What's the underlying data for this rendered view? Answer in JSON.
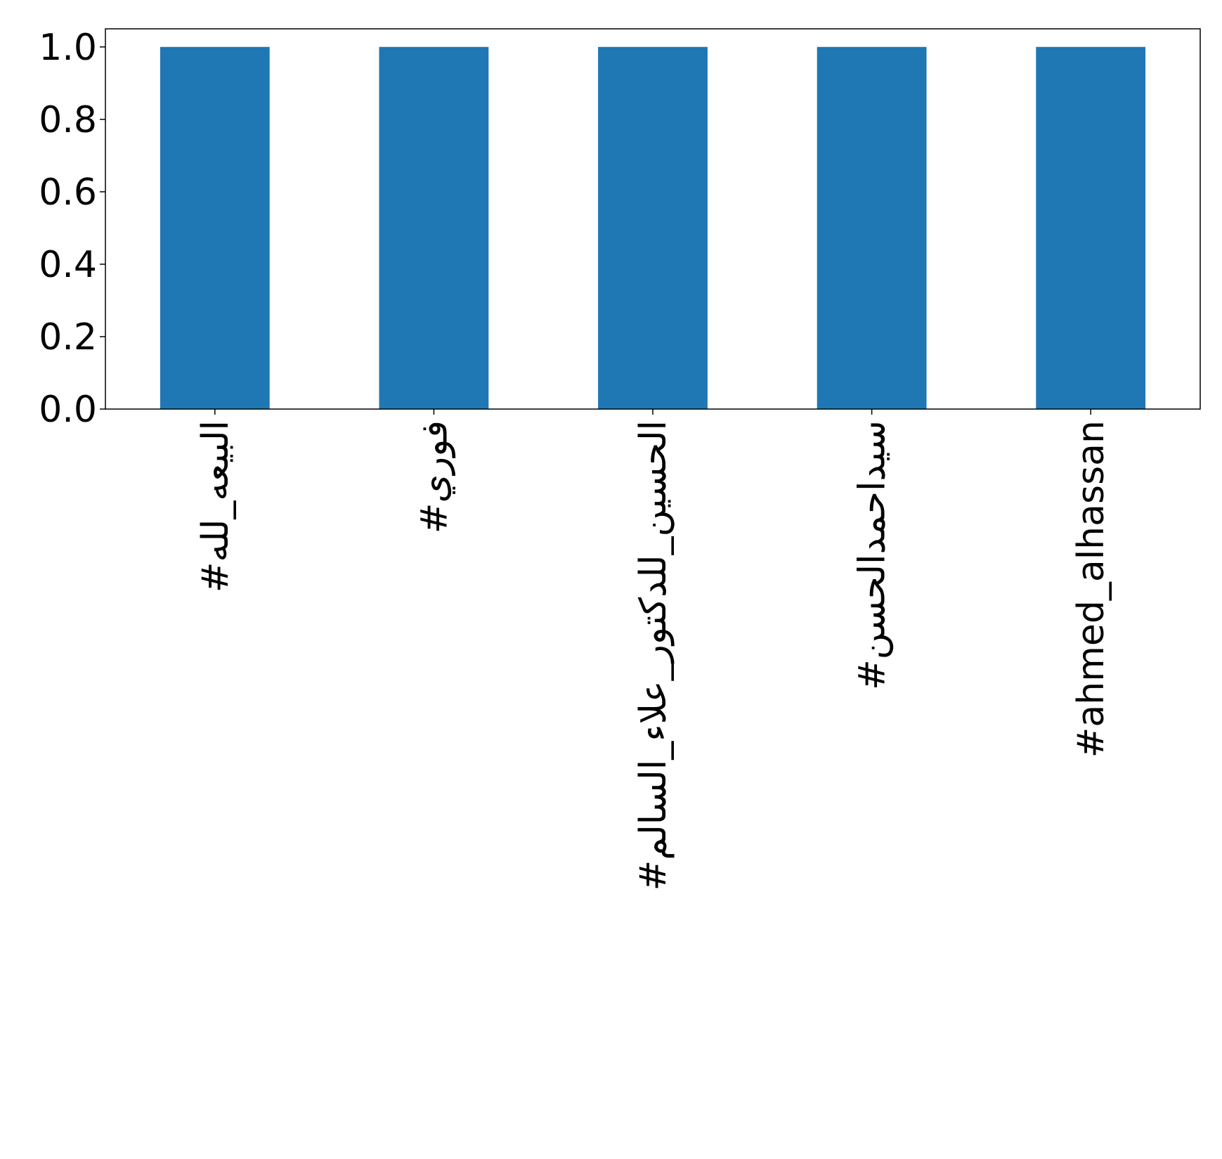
{
  "chart_data": {
    "type": "bar",
    "categories": [
      "#البيعه_لله",
      "#فوري",
      "#الحسين_للدكتور_علاء_السالم",
      "#سيداحمدالحسن",
      "#ahmed_alhassan"
    ],
    "values": [
      1.0,
      1.0,
      1.0,
      1.0,
      1.0
    ],
    "color": "#1f77b4",
    "ylim": [
      0,
      1.05
    ],
    "yticks": [
      {
        "value": 0,
        "label": "0.0"
      },
      {
        "value": 0.2,
        "label": "0.2"
      },
      {
        "value": 0.4,
        "label": "0.4"
      },
      {
        "value": 0.6,
        "label": "0.6"
      },
      {
        "value": 0.8,
        "label": "0.8"
      },
      {
        "value": 1.0,
        "label": "1.0"
      }
    ],
    "grid": false
  }
}
